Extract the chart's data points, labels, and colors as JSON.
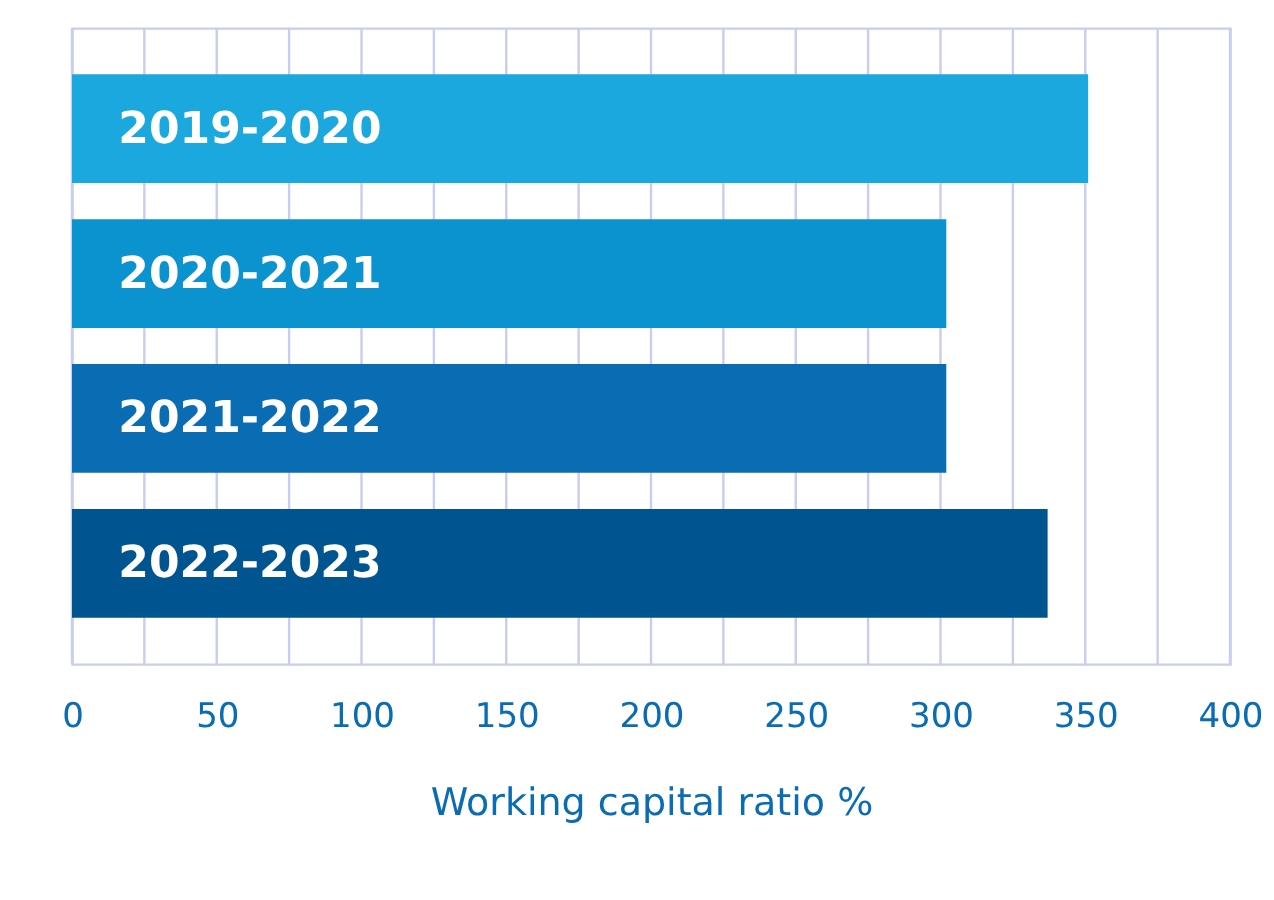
{
  "chart_data": {
    "type": "bar",
    "orientation": "horizontal",
    "xlabel": "Working capital ratio %",
    "categories": [
      "2019-2020",
      "2020-2021",
      "2021-2022",
      "2022-2023"
    ],
    "values": [
      351,
      302,
      302,
      337
    ],
    "colors": [
      "#1ba8df",
      "#0a93cf",
      "#0a6db4",
      "#005590"
    ],
    "xlim": [
      0,
      400
    ],
    "xticks": [
      0,
      {
        "value": 25,
        "label": null
      },
      50,
      {
        "value": 75,
        "label": null
      },
      100,
      {
        "value": 125,
        "label": null
      },
      150,
      {
        "value": 175,
        "label": null
      },
      200,
      {
        "value": 225,
        "label": null
      },
      250,
      {
        "value": 275,
        "label": null
      },
      300,
      {
        "value": 325,
        "label": null
      },
      350,
      {
        "value": 375,
        "label": null
      },
      400
    ],
    "grid": true
  }
}
